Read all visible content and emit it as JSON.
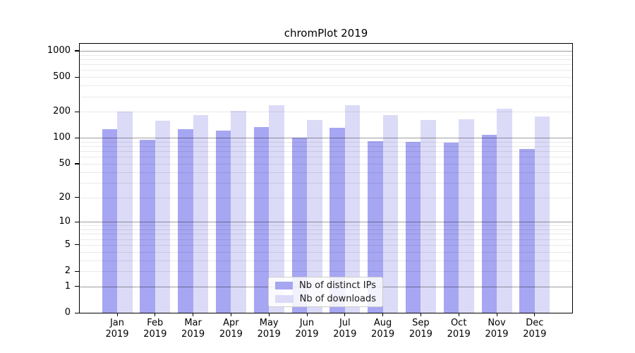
{
  "chart_data": {
    "type": "bar",
    "title": "chromPlot 2019",
    "xlabel": "",
    "ylabel": "",
    "yscale": "log1p",
    "grid": "on",
    "legend_position": "lower-center",
    "categories": [
      "Jan",
      "Feb",
      "Mar",
      "Apr",
      "May",
      "Jun",
      "Jul",
      "Aug",
      "Sep",
      "Oct",
      "Nov",
      "Dec"
    ],
    "category_year": "2019",
    "series": [
      {
        "name": "Nb of distinct IPs",
        "color": "#a6a6f2",
        "values": [
          126,
          95,
          126,
          120,
          133,
          100,
          131,
          91,
          90,
          88,
          108,
          74
        ]
      },
      {
        "name": "Nb of downloads",
        "color": "#dbdbf8",
        "values": [
          200,
          158,
          184,
          205,
          239,
          159,
          236,
          183,
          159,
          164,
          216,
          177
        ]
      }
    ],
    "yticks": [
      0,
      1,
      2,
      5,
      10,
      20,
      50,
      100,
      200,
      500,
      1000
    ],
    "ylim": [
      0,
      1200
    ],
    "colors": {
      "axis": "#000000",
      "major_grid": "rgba(0,0,0,0.38)",
      "minor_grid": "rgba(0,0,0,0.085)",
      "background": "#ffffff",
      "legend_border": "#cccccc"
    }
  }
}
